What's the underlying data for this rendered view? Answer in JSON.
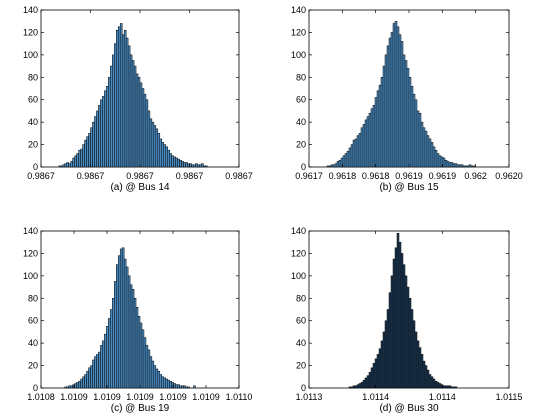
{
  "figure": {
    "panel_count": 4
  },
  "chart_data": [
    {
      "type": "bar",
      "caption": "(a) @ Bus 14",
      "bar_color": "#4a8bc0",
      "edge_color": "#000000",
      "x_ticks": [
        "0.9867",
        "0.9867",
        "0.9867",
        "0.9867",
        "0.9867"
      ],
      "y_ticks": [
        0,
        20,
        40,
        60,
        80,
        100,
        120,
        140
      ],
      "ylim": [
        0,
        140
      ],
      "values": [
        0,
        0,
        0,
        0,
        0,
        0,
        0,
        0,
        0,
        1,
        1,
        2,
        3,
        4,
        3,
        5,
        8,
        10,
        12,
        15,
        16,
        20,
        24,
        27,
        30,
        35,
        40,
        45,
        50,
        55,
        60,
        63,
        68,
        72,
        80,
        90,
        100,
        110,
        122,
        125,
        128,
        118,
        122,
        115,
        108,
        100,
        95,
        90,
        83,
        80,
        75,
        70,
        65,
        60,
        50,
        43,
        40,
        37,
        34,
        30,
        25,
        22,
        20,
        18,
        15,
        12,
        10,
        9,
        8,
        7,
        6,
        5,
        4,
        4,
        3,
        3,
        2,
        2,
        3,
        2,
        2,
        3,
        1,
        1,
        0,
        0,
        0,
        0,
        0,
        0,
        0,
        0,
        0,
        0,
        0,
        0,
        0,
        0,
        0,
        0
      ]
    },
    {
      "type": "bar",
      "caption": "(b) @ Bus 15",
      "bar_color": "#4a8bc0",
      "edge_color": "#000000",
      "x_ticks": [
        "0.9617",
        "0.9618",
        "0.9618",
        "0.9619",
        "0.9619",
        "0.962",
        "0.9620"
      ],
      "y_ticks": [
        0,
        20,
        40,
        60,
        80,
        100,
        120,
        140
      ],
      "ylim": [
        0,
        140
      ],
      "values": [
        0,
        0,
        0,
        0,
        0,
        0,
        0,
        0,
        0,
        1,
        1,
        2,
        2,
        3,
        5,
        6,
        8,
        10,
        12,
        14,
        17,
        20,
        24,
        25,
        28,
        30,
        35,
        38,
        42,
        45,
        48,
        52,
        55,
        62,
        68,
        73,
        80,
        90,
        100,
        108,
        115,
        120,
        128,
        130,
        125,
        118,
        112,
        100,
        95,
        88,
        80,
        72,
        65,
        60,
        50,
        48,
        40,
        35,
        32,
        28,
        25,
        22,
        18,
        15,
        12,
        10,
        9,
        8,
        6,
        5,
        4,
        4,
        3,
        3,
        2,
        2,
        2,
        1,
        1,
        1,
        2,
        1,
        1,
        0,
        0,
        0,
        0,
        0,
        0,
        0,
        0,
        0,
        0,
        0,
        0,
        0,
        0,
        0,
        0,
        0
      ]
    },
    {
      "type": "bar",
      "caption": "(c) @ Bus 19",
      "bar_color": "#4a8bc0",
      "edge_color": "#000000",
      "x_ticks": [
        "1.0108",
        "1.0109",
        "1.0109",
        "1.0109",
        "1.0109",
        "1.0109",
        "1.0110"
      ],
      "y_ticks": [
        0,
        20,
        40,
        60,
        80,
        100,
        120,
        140
      ],
      "ylim": [
        0,
        140
      ],
      "values": [
        0,
        0,
        0,
        0,
        0,
        0,
        0,
        0,
        0,
        0,
        0,
        0,
        1,
        1,
        2,
        2,
        3,
        4,
        5,
        6,
        8,
        10,
        12,
        15,
        18,
        20,
        25,
        28,
        30,
        32,
        38,
        42,
        48,
        55,
        62,
        70,
        80,
        95,
        110,
        118,
        124,
        125,
        115,
        108,
        100,
        92,
        88,
        80,
        72,
        64,
        58,
        52,
        45,
        38,
        34,
        28,
        24,
        20,
        17,
        15,
        12,
        10,
        9,
        8,
        7,
        6,
        5,
        4,
        3,
        3,
        2,
        2,
        2,
        1,
        1,
        0,
        0,
        2,
        0,
        0,
        0,
        0,
        0,
        0,
        0,
        0,
        0,
        0,
        0,
        0,
        0,
        0,
        0,
        0,
        0,
        0,
        0,
        0,
        0,
        0
      ]
    },
    {
      "type": "bar",
      "caption": "(d) @ Bus 30",
      "bar_color": "#1e3a55",
      "edge_color": "#000000",
      "x_ticks": [
        "1.0113",
        "1.0114",
        "1.0114",
        "1.0115"
      ],
      "y_ticks": [
        0,
        20,
        40,
        60,
        80,
        100,
        120,
        140
      ],
      "ylim": [
        0,
        140
      ],
      "values": [
        0,
        0,
        0,
        0,
        0,
        0,
        0,
        0,
        0,
        0,
        0,
        0,
        0,
        0,
        0,
        0,
        0,
        0,
        0,
        0,
        1,
        1,
        2,
        2,
        3,
        4,
        5,
        7,
        9,
        11,
        14,
        18,
        22,
        26,
        30,
        35,
        42,
        50,
        60,
        70,
        85,
        100,
        115,
        125,
        138,
        130,
        120,
        110,
        100,
        90,
        80,
        70,
        60,
        50,
        42,
        36,
        30,
        24,
        20,
        16,
        12,
        10,
        8,
        6,
        5,
        4,
        3,
        2,
        2,
        2,
        2,
        1,
        1,
        1,
        0,
        0,
        0,
        0,
        0,
        0,
        0,
        0,
        0,
        0,
        0,
        0,
        0,
        0,
        0,
        0,
        0,
        0,
        0,
        0,
        0,
        0,
        0,
        0,
        0,
        0
      ]
    }
  ]
}
